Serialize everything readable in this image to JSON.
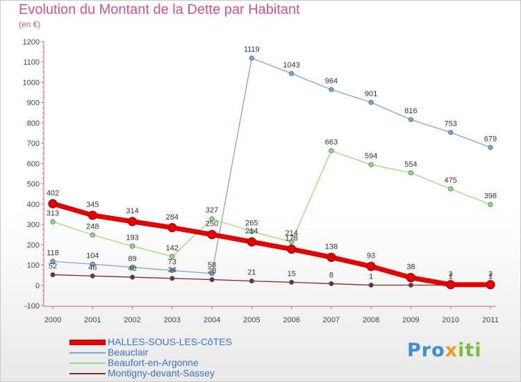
{
  "title": "Evolution du Montant de la Dette par Habitant",
  "subtitle": "(en €)",
  "logo": {
    "part1": "Pro",
    "part2": "x",
    "part3": "iti"
  },
  "chart_data": {
    "type": "line",
    "x": [
      "2000",
      "2001",
      "2002",
      "2003",
      "2004",
      "2005",
      "2006",
      "2007",
      "2008",
      "2009",
      "2010",
      "2011"
    ],
    "ylim": [
      -100,
      1200
    ],
    "yticks": [
      -100,
      0,
      100,
      200,
      300,
      400,
      500,
      600,
      700,
      800,
      900,
      1000,
      1100,
      1200
    ],
    "grid": false,
    "legend_position": "bottom-left",
    "series": [
      {
        "name": "HALLES-SOUS-LES-CôTES",
        "color": "#e60000",
        "width": 7,
        "values": [
          402,
          345,
          314,
          284,
          250,
          214,
          178,
          138,
          93,
          38,
          3,
          3
        ],
        "labels": [
          "402",
          "345",
          "314",
          "284",
          "250",
          "214",
          "178",
          "138",
          "93",
          "38",
          "3",
          "3"
        ]
      },
      {
        "name": "Beauclair",
        "color": "#7aa7cf",
        "width": 1.3,
        "values": [
          118,
          104,
          89,
          73,
          58,
          1119,
          1043,
          964,
          901,
          816,
          753,
          679
        ],
        "labels": [
          "118",
          "104",
          "89",
          "73",
          "58",
          "1119",
          "1043",
          "964",
          "901",
          "816",
          "753",
          "679"
        ]
      },
      {
        "name": "Beaufort-en-Argonne",
        "color": "#9bdc6a",
        "width": 1.3,
        "values": [
          313,
          248,
          193,
          142,
          327,
          265,
          214,
          663,
          594,
          554,
          475,
          398
        ],
        "labels": [
          "313",
          "248",
          "193",
          "142",
          "327",
          "265",
          "214",
          "663",
          "594",
          "554",
          "475",
          "398"
        ]
      },
      {
        "name": "Montigny-devant-Sassey",
        "color": "#7a2c2c",
        "width": 1.3,
        "values": [
          52,
          46,
          40,
          34,
          28,
          21,
          15,
          8,
          1,
          1,
          1,
          1
        ],
        "labels": [
          "52",
          "46",
          "40",
          "34",
          "28",
          "21",
          "15",
          "8",
          "1",
          "",
          "1",
          "1"
        ]
      }
    ]
  }
}
